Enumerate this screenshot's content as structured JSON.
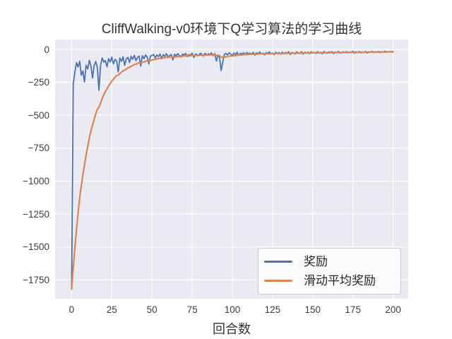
{
  "chart_data": {
    "type": "line",
    "title": "CliffWalking-v0环境下Q学习算法的学习曲线",
    "xlabel": "回合数",
    "ylabel": "",
    "grid": true,
    "xlim": [
      -10.3,
      209.4
    ],
    "ylim": [
      -1893,
      75
    ],
    "x_ticks": [
      0,
      25,
      50,
      75,
      100,
      125,
      150,
      175,
      200
    ],
    "x_tick_labels": [
      "0",
      "25",
      "50",
      "75",
      "100",
      "125",
      "150",
      "175",
      "200"
    ],
    "y_ticks": [
      0,
      -250,
      -500,
      -750,
      -1000,
      -1250,
      -1500,
      -1750
    ],
    "y_tick_labels": [
      "0",
      "−250",
      "−500",
      "−750",
      "−1000",
      "−1250",
      "−1500",
      "−1750"
    ],
    "colors": {
      "figure_background": "#FFFFFF",
      "axes_background": "#EAEAF2",
      "grid": "#FFFFFF",
      "text": "#333333",
      "tick_text": "#3d3d3d",
      "legend_border": "#CCCCCC"
    },
    "legend": {
      "position": "lower right"
    },
    "series": [
      {
        "name": "奖励",
        "id": "reward-line",
        "color": "#4C72B0",
        "line_width": 1.8,
        "x": {
          "start": 0,
          "step": 1,
          "end": 200
        },
        "values": [
          -1820,
          -264,
          -173,
          -100,
          -133,
          -90,
          -196,
          -164,
          -247,
          -120,
          -148,
          -82,
          -126,
          -216,
          -123,
          -92,
          -140,
          -310,
          -120,
          -65,
          -96,
          -85,
          -132,
          -70,
          -95,
          -58,
          -110,
          -75,
          -88,
          -170,
          -65,
          -90,
          -55,
          -120,
          -72,
          -60,
          -98,
          -52,
          -75,
          -45,
          -85,
          -60,
          -50,
          -125,
          -48,
          -70,
          -42,
          -58,
          -110,
          -50,
          -45,
          -38,
          -65,
          -42,
          -55,
          -35,
          -70,
          -40,
          -52,
          -33,
          -60,
          -45,
          -38,
          -80,
          -36,
          -50,
          -32,
          -44,
          -58,
          -35,
          -42,
          -30,
          -55,
          -38,
          -45,
          -28,
          -62,
          -35,
          -40,
          -48,
          -30,
          -36,
          -52,
          -29,
          -44,
          -33,
          -40,
          -26,
          -48,
          -31,
          -88,
          -45,
          -60,
          -160,
          -95,
          -38,
          -30,
          -42,
          -25,
          -36,
          -48,
          -28,
          -38,
          -22,
          -45,
          -30,
          -35,
          -26,
          -40,
          -24,
          -33,
          -28,
          -38,
          -22,
          -44,
          -26,
          -32,
          -20,
          -36,
          -28,
          -42,
          -24,
          -30,
          -19,
          -35,
          -27,
          -40,
          -22,
          -31,
          -25,
          -36,
          -20,
          -33,
          -24,
          -29,
          -18,
          -38,
          -23,
          -28,
          -34,
          -19,
          -26,
          -31,
          -17,
          -35,
          -22,
          -28,
          -20,
          -32,
          -18,
          -26,
          -22,
          -30,
          -17,
          -27,
          -21,
          -33,
          -16,
          -25,
          -29,
          -19,
          -24,
          -17,
          -31,
          -20,
          -26,
          -15,
          -28,
          -22,
          -18,
          -25,
          -16,
          -27,
          -20,
          -24,
          -14,
          -29,
          -18,
          -23,
          -16,
          -26,
          -19,
          -22,
          -15,
          -28,
          -17,
          -21,
          -14,
          -24,
          -18,
          -22,
          -15,
          -25,
          -17,
          -20,
          -13,
          -22,
          -16,
          -19,
          -14,
          -17
        ]
      },
      {
        "name": "滑动平均奖励",
        "id": "moving-average-line",
        "color": "#DD8452",
        "line_width": 2.2,
        "x": {
          "start": 0,
          "step": 1,
          "end": 200
        },
        "values": [
          -1820,
          -1658,
          -1510,
          -1369,
          -1245,
          -1130,
          -1036,
          -949,
          -879,
          -803,
          -737,
          -672,
          -617,
          -577,
          -532,
          -488,
          -453,
          -439,
          -407,
          -373,
          -345,
          -319,
          -300,
          -277,
          -259,
          -239,
          -226,
          -211,
          -199,
          -196,
          -183,
          -173,
          -162,
          -157,
          -149,
          -140,
          -136,
          -127,
          -122,
          -114,
          -112,
          -106,
          -101,
          -103,
          -98,
          -95,
          -90,
          -86,
          -89,
          -85,
          -81,
          -77,
          -75,
          -72,
          -70,
          -67,
          -67,
          -64,
          -63,
          -60,
          -60,
          -59,
          -57,
          -59,
          -57,
          -56,
          -54,
          -53,
          -53,
          -51,
          -50,
          -48,
          -49,
          -48,
          -48,
          -46,
          -47,
          -46,
          -45,
          -46,
          -44,
          -43,
          -44,
          -43,
          -43,
          -42,
          -42,
          -40,
          -41,
          -40,
          -45,
          -45,
          -46,
          -58,
          -61,
          -59,
          -56,
          -55,
          -52,
          -50,
          -50,
          -48,
          -47,
          -44,
          -44,
          -43,
          -42,
          -40,
          -40,
          -39,
          -38,
          -37,
          -37,
          -36,
          -37,
          -36,
          -35,
          -34,
          -34,
          -33,
          -34,
          -33,
          -33,
          -32,
          -32,
          -31,
          -32,
          -31,
          -31,
          -31,
          -31,
          -30,
          -30,
          -30,
          -30,
          -29,
          -30,
          -29,
          -29,
          -29,
          -28,
          -28,
          -28,
          -27,
          -28,
          -27,
          -28,
          -27,
          -27,
          -26,
          -26,
          -26,
          -26,
          -25,
          -26,
          -25,
          -26,
          -25,
          -25,
          -25,
          -25,
          -25,
          -24,
          -25,
          -24,
          -24,
          -23,
          -24,
          -24,
          -23,
          -23,
          -23,
          -23,
          -23,
          -23,
          -22,
          -23,
          -22,
          -22,
          -22,
          -22,
          -22,
          -22,
          -21,
          -22,
          -21,
          -21,
          -20,
          -21,
          -21,
          -21,
          -20,
          -21,
          -20,
          -20,
          -20,
          -20,
          -19,
          -19,
          -19,
          -19
        ]
      }
    ]
  }
}
